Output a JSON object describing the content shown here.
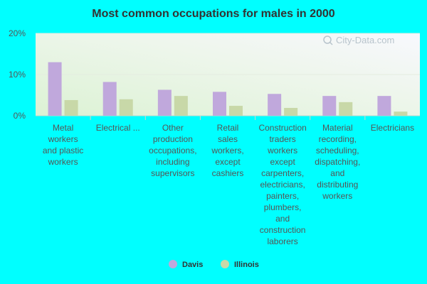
{
  "chart_data": {
    "type": "bar",
    "title": "Most common occupations for males in 2000",
    "categories": [
      "Metal workers and plastic workers",
      "Electrical ...",
      "Other production occupations, including supervisors",
      "Retail sales workers, except cashiers",
      "Construction traders workers except carpenters, electricians, painters, plumbers, and construction laborers",
      "Material recording, scheduling, dispatching, and distributing workers",
      "Electricians"
    ],
    "category_lines": [
      [
        "Metal",
        "workers",
        "and plastic",
        "workers"
      ],
      [
        "Electrical ..."
      ],
      [
        "Other",
        "production",
        "occupations,",
        "including",
        "supervisors"
      ],
      [
        "Retail",
        "sales",
        "workers,",
        "except",
        "cashiers"
      ],
      [
        "Construction",
        "traders",
        "workers",
        "except",
        "carpenters,",
        "electricians,",
        "painters,",
        "plumbers,",
        "and",
        "construction",
        "laborers"
      ],
      [
        "Material",
        "recording,",
        "scheduling,",
        "dispatching,",
        "and",
        "distributing",
        "workers"
      ],
      [
        "Electricians"
      ]
    ],
    "series": [
      {
        "name": "Davis",
        "color": "#c0a8dc",
        "values": [
          13.0,
          8.2,
          6.3,
          5.8,
          5.3,
          4.8,
          4.8
        ]
      },
      {
        "name": "Illinois",
        "color": "#c8d8a8",
        "values": [
          3.8,
          4.0,
          4.8,
          2.4,
          1.9,
          3.3,
          1.0
        ]
      }
    ],
    "ylim": [
      0,
      20
    ],
    "yticks": [
      0,
      10,
      20
    ],
    "ytick_labels": [
      "0%",
      "10%",
      "20%"
    ],
    "xlabel": "",
    "ylabel": "",
    "grid": true,
    "legend_position": "bottom"
  },
  "watermark": {
    "text": "City-Data.com"
  },
  "colors": {
    "page_background": "#00ffff",
    "plot_background_start": "#e3f5dc",
    "plot_background_end": "#f7f7fc"
  }
}
